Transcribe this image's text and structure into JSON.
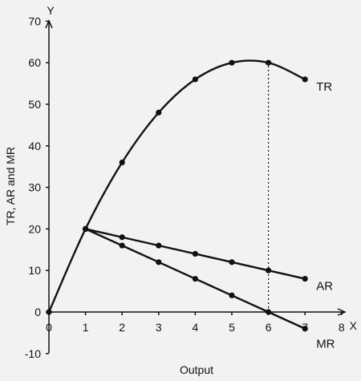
{
  "chart_data": {
    "type": "line",
    "xlabel": "Output",
    "ylabel": "TR, AR and MR",
    "x_axis_letter": "X",
    "y_axis_letter": "Y",
    "xlim": [
      0,
      8
    ],
    "ylim": [
      -10,
      70
    ],
    "x_ticks": [
      0,
      1,
      2,
      3,
      4,
      5,
      6,
      7,
      8
    ],
    "y_ticks": [
      -10,
      0,
      10,
      20,
      30,
      40,
      50,
      60,
      70
    ],
    "grid": false,
    "x": [
      1,
      2,
      3,
      4,
      5,
      6,
      7
    ],
    "series": [
      {
        "name": "TR",
        "values": [
          20,
          36,
          48,
          56,
          60,
          60,
          56
        ],
        "origin_point": [
          0,
          0
        ]
      },
      {
        "name": "AR",
        "values": [
          20,
          18,
          16,
          14,
          12,
          10,
          8
        ]
      },
      {
        "name": "MR",
        "values": [
          20,
          16,
          12,
          8,
          4,
          0,
          -4
        ]
      }
    ],
    "reference_line": {
      "x": 6,
      "from_y": 0,
      "to_y": 60,
      "style": "dotted"
    }
  }
}
